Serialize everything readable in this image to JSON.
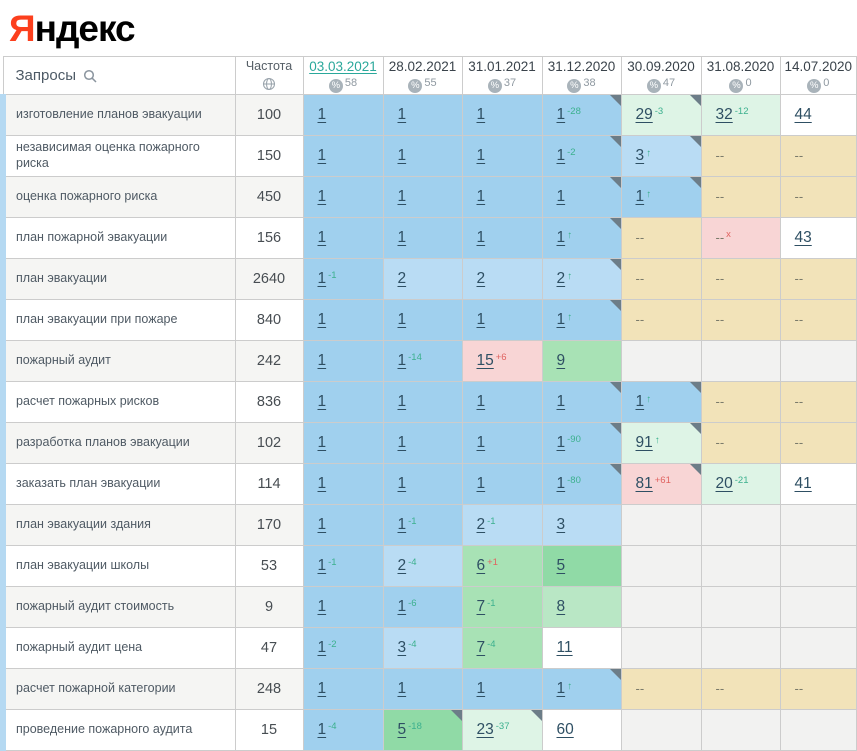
{
  "logo": {
    "first_letter": "Я",
    "rest": "ндекс",
    "brand_color": "#fc3f1d"
  },
  "colors": {
    "b1": "#a0d0ee",
    "b2": "#b9dcf4",
    "g4": "#90daa6",
    "g6": "#a8e2b5",
    "g8": "#b9e7c5",
    "pg": "#def4e6",
    "pk": "#f8d5d5",
    "tan": "#f2e3b9",
    "wh": "#ffffff",
    "emp": "#f2f2f1",
    "delta_up_green": "#3cb08e",
    "delta_down_red": "#e06360",
    "active_date_teal": "#2ba89b",
    "corner_gray": "#6c7d88",
    "left_strip_blue": "#b5d9f2"
  },
  "table": {
    "queries_header": "Запросы",
    "frequency_header": "Частота",
    "percent_sign": "%",
    "date_columns": [
      {
        "date": "03.03.2021",
        "visibility": "58",
        "active": true
      },
      {
        "date": "28.02.2021",
        "visibility": "55",
        "active": false
      },
      {
        "date": "31.01.2021",
        "visibility": "37",
        "active": false
      },
      {
        "date": "31.12.2020",
        "visibility": "38",
        "active": false
      },
      {
        "date": "30.09.2020",
        "visibility": "47",
        "active": false
      },
      {
        "date": "31.08.2020",
        "visibility": "0",
        "active": false
      },
      {
        "date": "14.07.2020",
        "visibility": "0",
        "active": false
      }
    ],
    "rows": [
      {
        "query": "изготовление планов эвакуации",
        "frequency": "100",
        "cells": [
          {
            "v": "1",
            "bg": "b1"
          },
          {
            "v": "1",
            "bg": "b1"
          },
          {
            "v": "1",
            "bg": "b1"
          },
          {
            "v": "1",
            "sup": "-28",
            "sc": "g",
            "bg": "b1",
            "corner": true
          },
          {
            "v": "29",
            "sup": "-3",
            "sc": "g",
            "bg": "pg",
            "corner": true
          },
          {
            "v": "32",
            "sup": "-12",
            "sc": "g",
            "bg": "pg"
          },
          {
            "v": "44",
            "bg": "wh"
          }
        ]
      },
      {
        "query": "независимая оценка пожарного риска",
        "frequency": "150",
        "cells": [
          {
            "v": "1",
            "bg": "b1"
          },
          {
            "v": "1",
            "bg": "b1"
          },
          {
            "v": "1",
            "bg": "b1"
          },
          {
            "v": "1",
            "sup": "-2",
            "sc": "g",
            "bg": "b1",
            "corner": true
          },
          {
            "v": "3",
            "sup": "up",
            "sc": "g",
            "bg": "b2",
            "corner": true
          },
          {
            "v": "--",
            "bg": "tan"
          },
          {
            "v": "--",
            "bg": "tan"
          }
        ]
      },
      {
        "query": "оценка пожарного риска",
        "frequency": "450",
        "cells": [
          {
            "v": "1",
            "bg": "b1"
          },
          {
            "v": "1",
            "bg": "b1"
          },
          {
            "v": "1",
            "bg": "b1"
          },
          {
            "v": "1",
            "bg": "b1",
            "corner": true
          },
          {
            "v": "1",
            "sup": "up",
            "sc": "g",
            "bg": "b1",
            "corner": true
          },
          {
            "v": "--",
            "bg": "tan"
          },
          {
            "v": "--",
            "bg": "tan"
          }
        ]
      },
      {
        "query": "план пожарной эвакуации",
        "frequency": "156",
        "cells": [
          {
            "v": "1",
            "bg": "b1"
          },
          {
            "v": "1",
            "bg": "b1"
          },
          {
            "v": "1",
            "bg": "b1"
          },
          {
            "v": "1",
            "sup": "up",
            "sc": "g",
            "bg": "b1",
            "corner": true
          },
          {
            "v": "--",
            "bg": "tan"
          },
          {
            "v": "--",
            "sup": "x",
            "sc": "r",
            "bg": "pk"
          },
          {
            "v": "43",
            "bg": "wh"
          }
        ]
      },
      {
        "query": "план эвакуации",
        "frequency": "2640",
        "cells": [
          {
            "v": "1",
            "sup": "-1",
            "sc": "g",
            "bg": "b1"
          },
          {
            "v": "2",
            "bg": "b2"
          },
          {
            "v": "2",
            "bg": "b2"
          },
          {
            "v": "2",
            "sup": "up",
            "sc": "g",
            "bg": "b2",
            "corner": true
          },
          {
            "v": "--",
            "bg": "tan"
          },
          {
            "v": "--",
            "bg": "tan"
          },
          {
            "v": "--",
            "bg": "tan"
          }
        ]
      },
      {
        "query": "план эвакуации при пожаре",
        "frequency": "840",
        "cells": [
          {
            "v": "1",
            "bg": "b1"
          },
          {
            "v": "1",
            "bg": "b1"
          },
          {
            "v": "1",
            "bg": "b1"
          },
          {
            "v": "1",
            "sup": "up",
            "sc": "g",
            "bg": "b1",
            "corner": true
          },
          {
            "v": "--",
            "bg": "tan"
          },
          {
            "v": "--",
            "bg": "tan"
          },
          {
            "v": "--",
            "bg": "tan"
          }
        ]
      },
      {
        "query": "пожарный аудит",
        "frequency": "242",
        "cells": [
          {
            "v": "1",
            "bg": "b1"
          },
          {
            "v": "1",
            "sup": "-14",
            "sc": "g",
            "bg": "b1"
          },
          {
            "v": "15",
            "sup": "+6",
            "sc": "r",
            "bg": "pk"
          },
          {
            "v": "9",
            "bg": "g6"
          },
          {
            "v": "",
            "bg": "emp"
          },
          {
            "v": "",
            "bg": "emp"
          },
          {
            "v": "",
            "bg": "emp"
          }
        ]
      },
      {
        "query": "расчет пожарных рисков",
        "frequency": "836",
        "cells": [
          {
            "v": "1",
            "bg": "b1"
          },
          {
            "v": "1",
            "bg": "b1"
          },
          {
            "v": "1",
            "bg": "b1"
          },
          {
            "v": "1",
            "bg": "b1",
            "corner": true
          },
          {
            "v": "1",
            "sup": "up",
            "sc": "g",
            "bg": "b1",
            "corner": true
          },
          {
            "v": "--",
            "bg": "tan"
          },
          {
            "v": "--",
            "bg": "tan"
          }
        ]
      },
      {
        "query": "разработка планов эвакуации",
        "frequency": "102",
        "cells": [
          {
            "v": "1",
            "bg": "b1"
          },
          {
            "v": "1",
            "bg": "b1"
          },
          {
            "v": "1",
            "bg": "b1"
          },
          {
            "v": "1",
            "sup": "-90",
            "sc": "g",
            "bg": "b1",
            "corner": true
          },
          {
            "v": "91",
            "sup": "up",
            "sc": "g",
            "bg": "pg",
            "corner": true
          },
          {
            "v": "--",
            "bg": "tan"
          },
          {
            "v": "--",
            "bg": "tan"
          }
        ]
      },
      {
        "query": "заказать план эвакуации",
        "frequency": "114",
        "cells": [
          {
            "v": "1",
            "bg": "b1"
          },
          {
            "v": "1",
            "bg": "b1"
          },
          {
            "v": "1",
            "bg": "b1"
          },
          {
            "v": "1",
            "sup": "-80",
            "sc": "g",
            "bg": "b1",
            "corner": true
          },
          {
            "v": "81",
            "sup": "+61",
            "sc": "r",
            "bg": "pk",
            "corner": true
          },
          {
            "v": "20",
            "sup": "-21",
            "sc": "g",
            "bg": "pg"
          },
          {
            "v": "41",
            "bg": "wh"
          }
        ]
      },
      {
        "query": "план эвакуации здания",
        "frequency": "170",
        "cells": [
          {
            "v": "1",
            "bg": "b1"
          },
          {
            "v": "1",
            "sup": "-1",
            "sc": "g",
            "bg": "b1"
          },
          {
            "v": "2",
            "sup": "-1",
            "sc": "g",
            "bg": "b2"
          },
          {
            "v": "3",
            "bg": "b2"
          },
          {
            "v": "",
            "bg": "emp"
          },
          {
            "v": "",
            "bg": "emp"
          },
          {
            "v": "",
            "bg": "emp"
          }
        ]
      },
      {
        "query": "план эвакуации школы",
        "frequency": "53",
        "cells": [
          {
            "v": "1",
            "sup": "-1",
            "sc": "g",
            "bg": "b1"
          },
          {
            "v": "2",
            "sup": "-4",
            "sc": "g",
            "bg": "b2"
          },
          {
            "v": "6",
            "sup": "+1",
            "sc": "r",
            "bg": "g6"
          },
          {
            "v": "5",
            "bg": "g4"
          },
          {
            "v": "",
            "bg": "emp"
          },
          {
            "v": "",
            "bg": "emp"
          },
          {
            "v": "",
            "bg": "emp"
          }
        ]
      },
      {
        "query": "пожарный аудит стоимость",
        "frequency": "9",
        "cells": [
          {
            "v": "1",
            "bg": "b1"
          },
          {
            "v": "1",
            "sup": "-6",
            "sc": "g",
            "bg": "b1"
          },
          {
            "v": "7",
            "sup": "-1",
            "sc": "g",
            "bg": "g6"
          },
          {
            "v": "8",
            "bg": "g8"
          },
          {
            "v": "",
            "bg": "emp"
          },
          {
            "v": "",
            "bg": "emp"
          },
          {
            "v": "",
            "bg": "emp"
          }
        ]
      },
      {
        "query": "пожарный аудит цена",
        "frequency": "47",
        "cells": [
          {
            "v": "1",
            "sup": "-2",
            "sc": "g",
            "bg": "b1"
          },
          {
            "v": "3",
            "sup": "-4",
            "sc": "g",
            "bg": "b2"
          },
          {
            "v": "7",
            "sup": "-4",
            "sc": "g",
            "bg": "g6"
          },
          {
            "v": "11",
            "bg": "wh"
          },
          {
            "v": "",
            "bg": "emp"
          },
          {
            "v": "",
            "bg": "emp"
          },
          {
            "v": "",
            "bg": "emp"
          }
        ]
      },
      {
        "query": "расчет пожарной категории",
        "frequency": "248",
        "cells": [
          {
            "v": "1",
            "bg": "b1"
          },
          {
            "v": "1",
            "bg": "b1"
          },
          {
            "v": "1",
            "bg": "b1"
          },
          {
            "v": "1",
            "sup": "up",
            "sc": "g",
            "bg": "b1",
            "corner": true
          },
          {
            "v": "--",
            "bg": "tan"
          },
          {
            "v": "--",
            "bg": "tan"
          },
          {
            "v": "--",
            "bg": "tan"
          }
        ]
      },
      {
        "query": "проведение пожарного аудита",
        "frequency": "15",
        "cells": [
          {
            "v": "1",
            "sup": "-4",
            "sc": "g",
            "bg": "b1"
          },
          {
            "v": "5",
            "sup": "-18",
            "sc": "g",
            "bg": "g4",
            "corner": true
          },
          {
            "v": "23",
            "sup": "-37",
            "sc": "g",
            "bg": "pg",
            "corner": true
          },
          {
            "v": "60",
            "bg": "wh"
          },
          {
            "v": "",
            "bg": "emp"
          },
          {
            "v": "",
            "bg": "emp"
          },
          {
            "v": "",
            "bg": "emp"
          }
        ]
      }
    ]
  }
}
